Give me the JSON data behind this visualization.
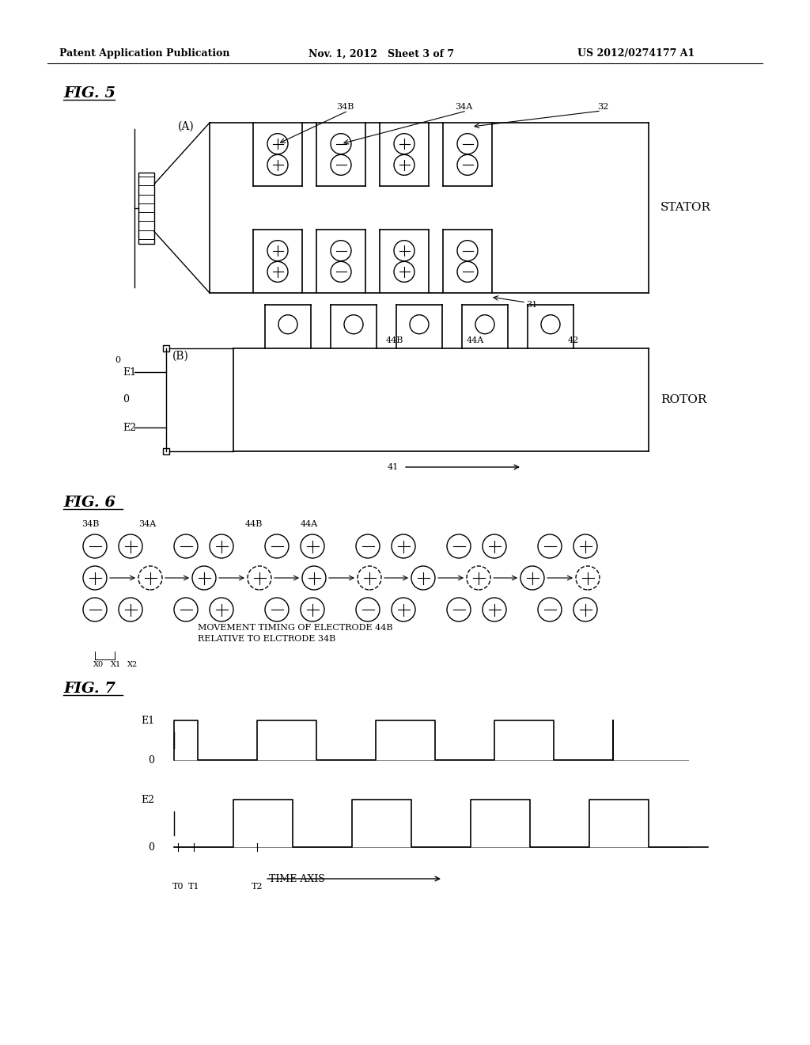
{
  "header_left": "Patent Application Publication",
  "header_mid": "Nov. 1, 2012   Sheet 3 of 7",
  "header_right": "US 2012/0274177 A1",
  "fig5_label": "FIG. 5",
  "fig6_label": "FIG. 6",
  "fig7_label": "FIG. 7",
  "stator_label": "STATOR",
  "rotor_label": "ROTOR",
  "label_A": "(A)",
  "label_B": "(B)",
  "bg_color": "#ffffff",
  "line_color": "#000000",
  "fig7_e1_label": "E1",
  "fig7_0a_label": "0",
  "fig7_e2_label": "E2",
  "fig7_0b_label": "0",
  "fig7_time_label": "TIME AXIS",
  "fig7_t0_label": "T0",
  "fig7_t1_label": "T1",
  "fig7_t2_label": "T2",
  "fig6_text": "MOVEMENT TIMING OF ELECTRODE 44B\nRELATIVE TO ELCTRODE 34B",
  "fig6_x0": "X0",
  "fig6_x1": "X1",
  "fig6_x2": "X2"
}
